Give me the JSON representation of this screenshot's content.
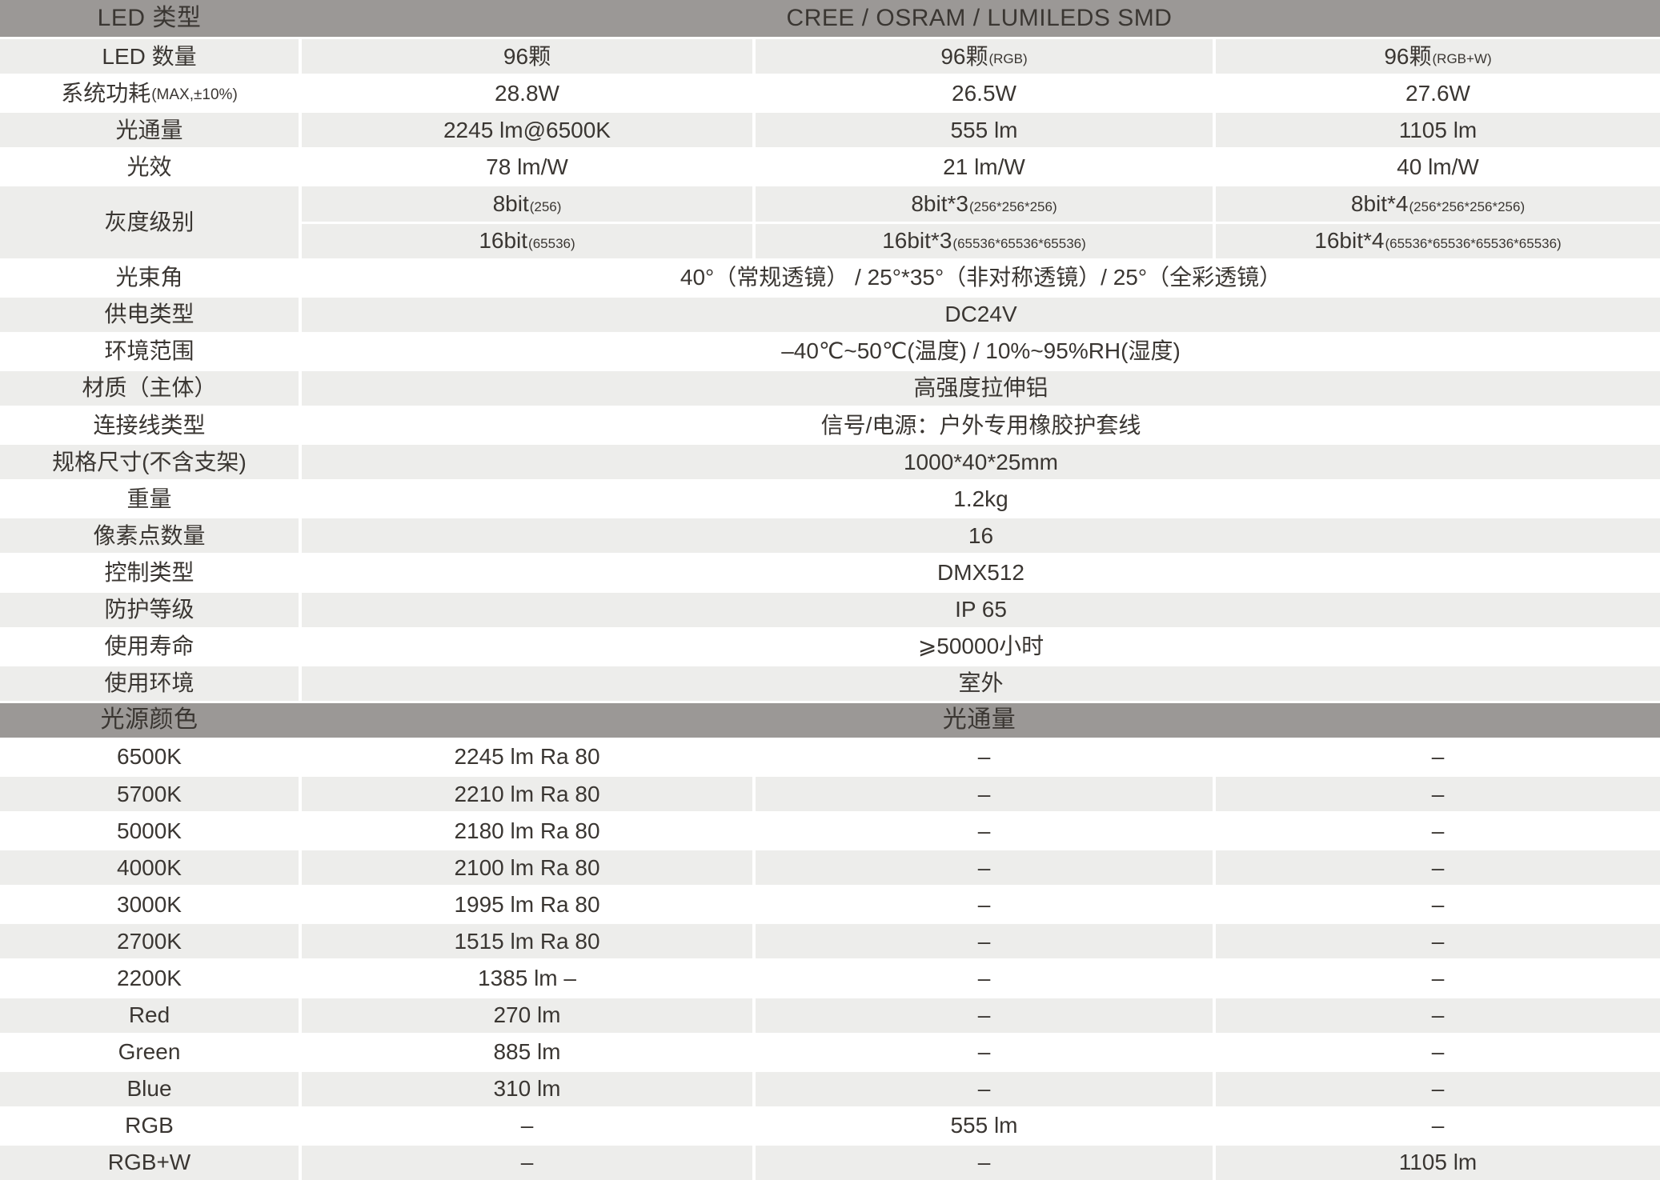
{
  "colors": {
    "header_bg": "#9b9896",
    "row_alt_bg": "#ededeb",
    "row_bg": "#ffffff",
    "text": "#3a3632"
  },
  "table": {
    "rows": [
      {
        "kind": "header",
        "bg": "dark",
        "label": "LED 类型",
        "value": "CREE / OSRAM / LUMILEDS SMD"
      },
      {
        "kind": "cells",
        "bg": "gray",
        "label": "LED 数量",
        "cells": [
          {
            "t": "96颗"
          },
          {
            "t": "96颗",
            "s": "(RGB)"
          },
          {
            "t": "96颗",
            "s": "(RGB+W)"
          }
        ]
      },
      {
        "kind": "cells",
        "bg": "white",
        "label": "系统功耗",
        "label_s": "(MAX,±10%)",
        "cells": [
          {
            "t": "28.8W"
          },
          {
            "t": "26.5W"
          },
          {
            "t": "27.6W"
          }
        ]
      },
      {
        "kind": "cells",
        "bg": "gray",
        "label": "光通量",
        "cells": [
          {
            "t": "2245 lm@6500K"
          },
          {
            "t": "555 lm"
          },
          {
            "t": "1105 lm"
          }
        ]
      },
      {
        "kind": "cells",
        "bg": "white",
        "label": "光效",
        "cells": [
          {
            "t": "78 lm/W"
          },
          {
            "t": "21 lm/W"
          },
          {
            "t": "40 lm/W"
          }
        ]
      },
      {
        "kind": "cells",
        "bg": "gray",
        "label": "灰度级别",
        "rowspan": 2,
        "cells": [
          {
            "t": "8bit",
            "s": "(256)"
          },
          {
            "t": "8bit*3",
            "s": "(256*256*256)"
          },
          {
            "t": "8bit*4",
            "s": "(256*256*256*256)"
          }
        ]
      },
      {
        "kind": "cells",
        "bg": "gray",
        "nolabel": true,
        "cells": [
          {
            "t": "16bit",
            "s": "(65536)"
          },
          {
            "t": "16bit*3",
            "s": "(65536*65536*65536)"
          },
          {
            "t": "16bit*4",
            "s": "(65536*65536*65536*65536)"
          }
        ]
      },
      {
        "kind": "merged",
        "bg": "white",
        "label": "光束角",
        "value": "40°（常规透镜） / 25°*35°（非对称透镜）/ 25°（全彩透镜）"
      },
      {
        "kind": "merged",
        "bg": "gray",
        "label": "供电类型",
        "value": "DC24V"
      },
      {
        "kind": "merged",
        "bg": "white",
        "label": "环境范围",
        "value": "–40℃~50℃(温度) / 10%~95%RH(湿度)"
      },
      {
        "kind": "merged",
        "bg": "gray",
        "label": "材质（主体）",
        "value": "高强度拉伸铝"
      },
      {
        "kind": "merged",
        "bg": "white",
        "label": "连接线类型",
        "value": "信号/电源：户外专用橡胶护套线"
      },
      {
        "kind": "merged",
        "bg": "gray",
        "label": "规格尺寸(不含支架)",
        "value": "1000*40*25mm"
      },
      {
        "kind": "merged",
        "bg": "white",
        "label": "重量",
        "value": "1.2kg"
      },
      {
        "kind": "merged",
        "bg": "gray",
        "label": "像素点数量",
        "value": "16"
      },
      {
        "kind": "merged",
        "bg": "white",
        "label": "控制类型",
        "value": "DMX512"
      },
      {
        "kind": "merged",
        "bg": "gray",
        "label": "防护等级",
        "value": "IP 65"
      },
      {
        "kind": "merged",
        "bg": "white",
        "label": "使用寿命",
        "value": "⩾50000小时"
      },
      {
        "kind": "merged",
        "bg": "gray",
        "label": "使用环境",
        "value": "室外"
      },
      {
        "kind": "header",
        "bg": "dark",
        "label": "光源颜色",
        "value": "光通量"
      },
      {
        "kind": "cells",
        "bg": "white",
        "label": "6500K",
        "cells": [
          {
            "t": "2245 lm Ra 80"
          },
          {
            "t": "–"
          },
          {
            "t": "–"
          }
        ]
      },
      {
        "kind": "cells",
        "bg": "gray",
        "label": "5700K",
        "cells": [
          {
            "t": "2210 lm Ra 80"
          },
          {
            "t": "–"
          },
          {
            "t": "–"
          }
        ]
      },
      {
        "kind": "cells",
        "bg": "white",
        "label": "5000K",
        "cells": [
          {
            "t": "2180 lm Ra 80"
          },
          {
            "t": "–"
          },
          {
            "t": "–"
          }
        ]
      },
      {
        "kind": "cells",
        "bg": "gray",
        "label": "4000K",
        "cells": [
          {
            "t": "2100 lm Ra 80"
          },
          {
            "t": "–"
          },
          {
            "t": "–"
          }
        ]
      },
      {
        "kind": "cells",
        "bg": "white",
        "label": "3000K",
        "cells": [
          {
            "t": "1995 lm Ra 80"
          },
          {
            "t": "–"
          },
          {
            "t": "–"
          }
        ]
      },
      {
        "kind": "cells",
        "bg": "gray",
        "label": "2700K",
        "cells": [
          {
            "t": "1515 lm Ra 80"
          },
          {
            "t": "–"
          },
          {
            "t": "–"
          }
        ]
      },
      {
        "kind": "cells",
        "bg": "white",
        "label": "2200K",
        "cells": [
          {
            "t": "1385 lm – "
          },
          {
            "t": "–"
          },
          {
            "t": "–"
          }
        ]
      },
      {
        "kind": "cells",
        "bg": "gray",
        "label": "Red",
        "cells": [
          {
            "t": "270 lm"
          },
          {
            "t": "–"
          },
          {
            "t": "–"
          }
        ]
      },
      {
        "kind": "cells",
        "bg": "white",
        "label": "Green",
        "cells": [
          {
            "t": "885 lm"
          },
          {
            "t": "–"
          },
          {
            "t": "–"
          }
        ]
      },
      {
        "kind": "cells",
        "bg": "gray",
        "label": "Blue",
        "cells": [
          {
            "t": "310 lm"
          },
          {
            "t": "–"
          },
          {
            "t": "–"
          }
        ]
      },
      {
        "kind": "cells",
        "bg": "white",
        "label": "RGB",
        "cells": [
          {
            "t": "–"
          },
          {
            "t": "555 lm"
          },
          {
            "t": "–"
          }
        ]
      },
      {
        "kind": "cells",
        "bg": "gray",
        "label": "RGB+W",
        "cells": [
          {
            "t": "–"
          },
          {
            "t": "–"
          },
          {
            "t": "1105 lm"
          }
        ]
      }
    ]
  }
}
